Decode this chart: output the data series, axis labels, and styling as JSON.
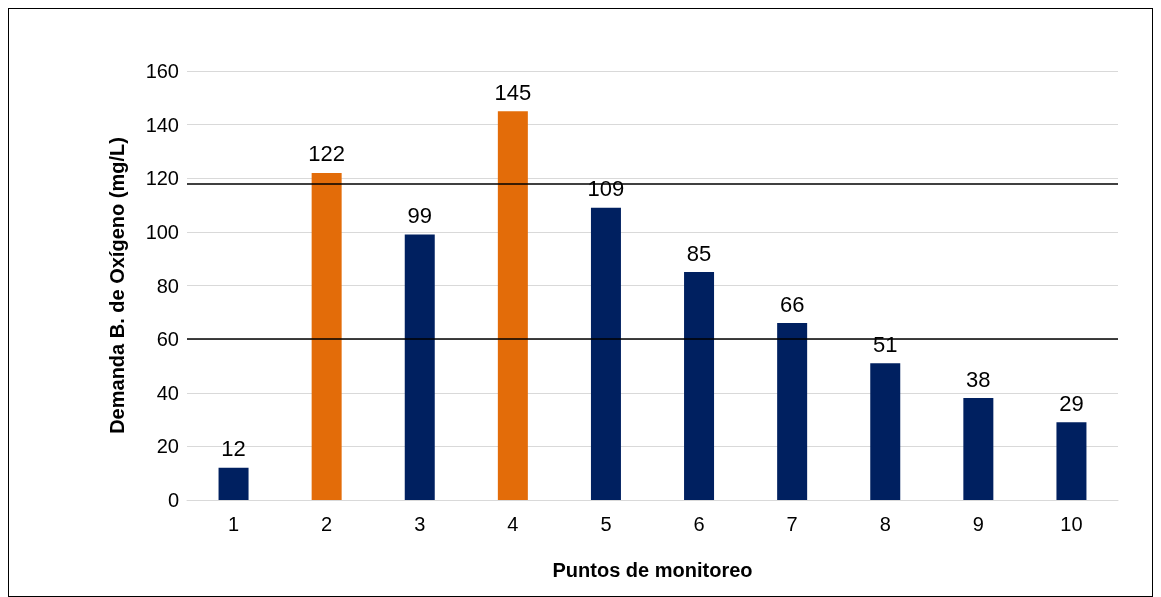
{
  "chart_data": {
    "type": "bar",
    "xlabel": "Puntos de monitoreo",
    "ylabel": "Demanda B. de Oxígeno (mg/L)",
    "categories": [
      "1",
      "2",
      "3",
      "4",
      "5",
      "6",
      "7",
      "8",
      "9",
      "10"
    ],
    "values": [
      12,
      122,
      99,
      145,
      109,
      85,
      66,
      51,
      38,
      29
    ],
    "colors": [
      "#002060",
      "#e36c09",
      "#002060",
      "#e36c09",
      "#002060",
      "#002060",
      "#002060",
      "#002060",
      "#002060",
      "#002060"
    ],
    "ylim": [
      0,
      160
    ],
    "yticks": [
      0,
      20,
      40,
      60,
      80,
      100,
      120,
      140,
      160
    ],
    "grid": "y",
    "data_labels": true,
    "ref_lines": [
      {
        "axis": "y",
        "value": 118,
        "color": "#000000",
        "line_style": "solid"
      },
      {
        "axis": "y",
        "value": 60,
        "color": "#000000",
        "line_style": "solid"
      }
    ]
  }
}
